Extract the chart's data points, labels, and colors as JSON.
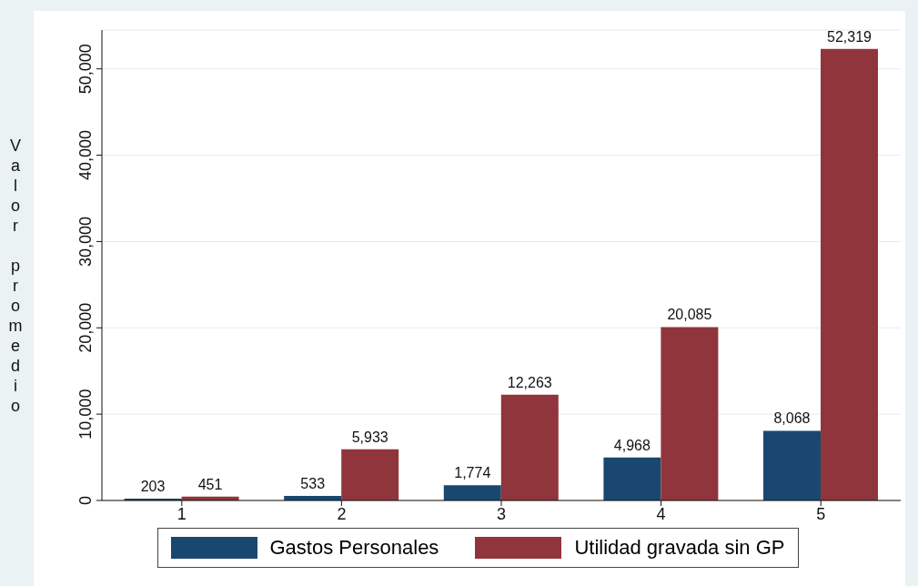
{
  "chart_data": {
    "type": "bar",
    "ylabel": "Valor promedio",
    "categories": [
      "1",
      "2",
      "3",
      "4",
      "5"
    ],
    "series": [
      {
        "name": "Gastos Personales",
        "color": "#1a476f",
        "values": [
          203,
          533,
          1774,
          4968,
          8068
        ],
        "value_labels": [
          "203",
          "533",
          "1,774",
          "4,968",
          "8,068"
        ]
      },
      {
        "name": "Utilidad gravada sin GP",
        "color": "#90353b",
        "values": [
          451,
          5933,
          12263,
          20085,
          52319
        ],
        "value_labels": [
          "451",
          "5,933",
          "12,263",
          "20,085",
          "52,319"
        ]
      }
    ],
    "ylim": [
      0,
      54500
    ],
    "yticks": [
      0,
      {
        "value": 10000,
        "label": "10,000"
      },
      {
        "value": 20000,
        "label": "20,000"
      },
      {
        "value": 30000,
        "label": "30,000"
      },
      {
        "value": 40000,
        "label": "40,000"
      },
      {
        "value": 50000,
        "label": "50,000"
      }
    ],
    "grid": "y",
    "legend": "bottom"
  }
}
